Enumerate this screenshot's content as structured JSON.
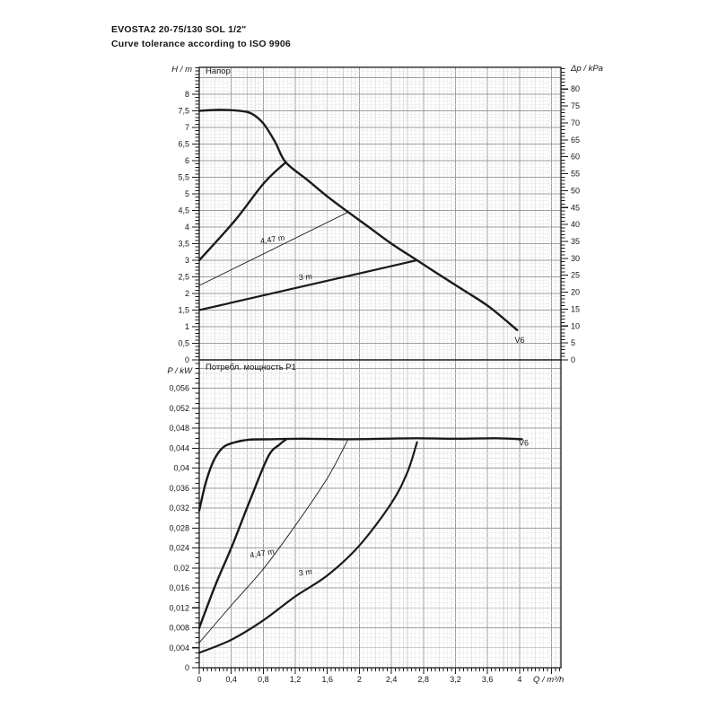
{
  "page": {
    "title_line1": "EVOSTA2 20-75/130 SOL 1/2\"",
    "title_line2": "Curve tolerance according to ISO 9906"
  },
  "colors": {
    "curve": "#1a1a1a",
    "frame": "#1a1a1a",
    "text": "#161616",
    "major_grid": "#9e9e9e",
    "medium_grid": "#c9c9c9",
    "minor_grid": "#e4e4e4",
    "background": "#ffffff"
  },
  "x_axis": {
    "label": "Q / m³/h",
    "max": 4.517,
    "tick_values": [
      0,
      0.4,
      0.8,
      1.2,
      1.6,
      2,
      2.4,
      2.8,
      3.2,
      3.6,
      4
    ],
    "tick_labels": [
      "0",
      "0,4",
      "0,8",
      "1,2",
      "1,6",
      "2",
      "2,4",
      "2,8",
      "3,2",
      "3,6",
      "4"
    ],
    "minor_tick_step": 0.05,
    "minor_grid_step": 0.05,
    "medium_grid_step": 0.2,
    "major_grid_step": 0.4
  },
  "chart_data": [
    {
      "type": "line",
      "title": "Напор",
      "y_left": {
        "label": "H / m",
        "max": 8.81,
        "minor_step": 0.1,
        "major_grid_step": 0.5,
        "tick_values": [
          0,
          0.5,
          1,
          1.5,
          2,
          2.5,
          3,
          3.5,
          4,
          4.5,
          5,
          5.5,
          6,
          6.5,
          7,
          7.5,
          8
        ],
        "tick_labels": [
          "0",
          "0,5",
          "1",
          "1,5",
          "2",
          "2,5",
          "3",
          "3,5",
          "4",
          "4,5",
          "5",
          "5,5",
          "6",
          "6,5",
          "7",
          "7,5",
          "8"
        ]
      },
      "y_right": {
        "label": "Δp / kPa",
        "scale_kpa_per_m": 9.81,
        "minor_step": 1,
        "tick_values": [
          0,
          5,
          10,
          15,
          20,
          25,
          30,
          35,
          40,
          45,
          50,
          55,
          60,
          65,
          70,
          75,
          80
        ],
        "tick_labels": [
          "0",
          "5",
          "10",
          "15",
          "20",
          "25",
          "30",
          "35",
          "40",
          "45",
          "50",
          "55",
          "60",
          "65",
          "70",
          "75",
          "80"
        ]
      },
      "series": [
        {
          "name": "head-curve-max-speed-v6",
          "label": "V6",
          "stroke_width": 2.4,
          "points": [
            [
              0,
              7.5
            ],
            [
              0.25,
              7.53
            ],
            [
              0.5,
              7.5
            ],
            [
              0.65,
              7.42
            ],
            [
              0.8,
              7.12
            ],
            [
              0.95,
              6.55
            ],
            [
              1.08,
              5.95
            ],
            [
              1.35,
              5.42
            ],
            [
              1.6,
              4.92
            ],
            [
              1.86,
              4.45
            ],
            [
              2.1,
              4.03
            ],
            [
              2.4,
              3.5
            ],
            [
              2.72,
              3.0
            ],
            [
              3.0,
              2.56
            ],
            [
              3.3,
              2.1
            ],
            [
              3.62,
              1.6
            ],
            [
              3.97,
              0.9
            ]
          ]
        },
        {
          "name": "head-curve-proportional-max",
          "label": "",
          "stroke_width": 2.4,
          "points": [
            [
              0,
              3.0
            ],
            [
              0.44,
              4.18
            ],
            [
              0.81,
              5.33
            ],
            [
              1.08,
              5.95
            ]
          ]
        },
        {
          "name": "head-curve-setpoint-4-47m",
          "label": "4,47 m",
          "stroke_width": 0.9,
          "points": [
            [
              0,
              2.24
            ],
            [
              1.86,
              4.45
            ]
          ]
        },
        {
          "name": "head-curve-setpoint-3m",
          "label": "3 m",
          "stroke_width": 2.2,
          "points": [
            [
              0,
              1.5
            ],
            [
              2.72,
              3.0
            ]
          ]
        }
      ],
      "annotations": [
        {
          "text": "4,47 m",
          "x": 0.92,
          "y": 3.55,
          "rot": -9,
          "anchor": "middle"
        },
        {
          "text": "3 m",
          "x": 1.33,
          "y": 2.42,
          "rot": -5,
          "anchor": "middle"
        },
        {
          "text": "V6",
          "x": 3.94,
          "y": 0.52,
          "rot": 0,
          "anchor": "start"
        }
      ]
    },
    {
      "type": "line",
      "title": "Потребл. мощность P1",
      "y_left": {
        "label": "P / kW",
        "max": 0.0617,
        "minor_step": 0.001,
        "major_grid_step": 0.004,
        "tick_values": [
          0,
          0.004,
          0.008,
          0.012,
          0.016,
          0.02,
          0.024,
          0.028,
          0.032,
          0.036,
          0.04,
          0.044,
          0.048,
          0.052,
          0.056
        ],
        "tick_labels": [
          "0",
          "0,004",
          "0,008",
          "0,012",
          "0,016",
          "0,02",
          "0,024",
          "0,028",
          "0,032",
          "0,036",
          "0,04",
          "0,044",
          "0,048",
          "0,052",
          "0,056"
        ]
      },
      "series": [
        {
          "name": "power-curve-max-speed-v6",
          "label": "V6",
          "stroke_width": 2.4,
          "points": [
            [
              0,
              0.0315
            ],
            [
              0.08,
              0.037
            ],
            [
              0.18,
              0.0415
            ],
            [
              0.3,
              0.0442
            ],
            [
              0.45,
              0.0452
            ],
            [
              0.62,
              0.0457
            ],
            [
              0.9,
              0.0458
            ],
            [
              1.3,
              0.0459
            ],
            [
              1.8,
              0.0458
            ],
            [
              2.3,
              0.0459
            ],
            [
              2.72,
              0.046
            ],
            [
              3.2,
              0.0459
            ],
            [
              3.7,
              0.046
            ],
            [
              4.03,
              0.0458
            ]
          ]
        },
        {
          "name": "power-curve-proportional-max",
          "label": "",
          "stroke_width": 2.4,
          "points": [
            [
              0,
              0.008
            ],
            [
              0.2,
              0.0165
            ],
            [
              0.41,
              0.0244
            ],
            [
              0.63,
              0.0334
            ],
            [
              0.86,
              0.0423
            ],
            [
              1.0,
              0.0447
            ],
            [
              1.08,
              0.0457
            ]
          ]
        },
        {
          "name": "power-curve-setpoint-4-47m",
          "label": "4,47 m",
          "stroke_width": 0.9,
          "points": [
            [
              0,
              0.005
            ],
            [
              0.4,
              0.0125
            ],
            [
              0.8,
              0.0198
            ],
            [
              1.2,
              0.0285
            ],
            [
              1.6,
              0.038
            ],
            [
              1.85,
              0.0455
            ]
          ]
        },
        {
          "name": "power-curve-setpoint-3m",
          "label": "3 m",
          "stroke_width": 2.2,
          "points": [
            [
              0,
              0.003
            ],
            [
              0.4,
              0.0056
            ],
            [
              0.8,
              0.0095
            ],
            [
              1.2,
              0.0143
            ],
            [
              1.6,
              0.0185
            ],
            [
              2.0,
              0.0245
            ],
            [
              2.4,
              0.033
            ],
            [
              2.6,
              0.0392
            ],
            [
              2.72,
              0.0452
            ]
          ]
        }
      ],
      "annotations": [
        {
          "text": "4,47 m",
          "x": 0.79,
          "y": 0.0224,
          "rot": -10,
          "anchor": "middle"
        },
        {
          "text": "3 m",
          "x": 1.33,
          "y": 0.0186,
          "rot": -8,
          "anchor": "middle"
        },
        {
          "text": "V6",
          "x": 3.99,
          "y": 0.0445,
          "rot": 0,
          "anchor": "start"
        }
      ]
    }
  ]
}
